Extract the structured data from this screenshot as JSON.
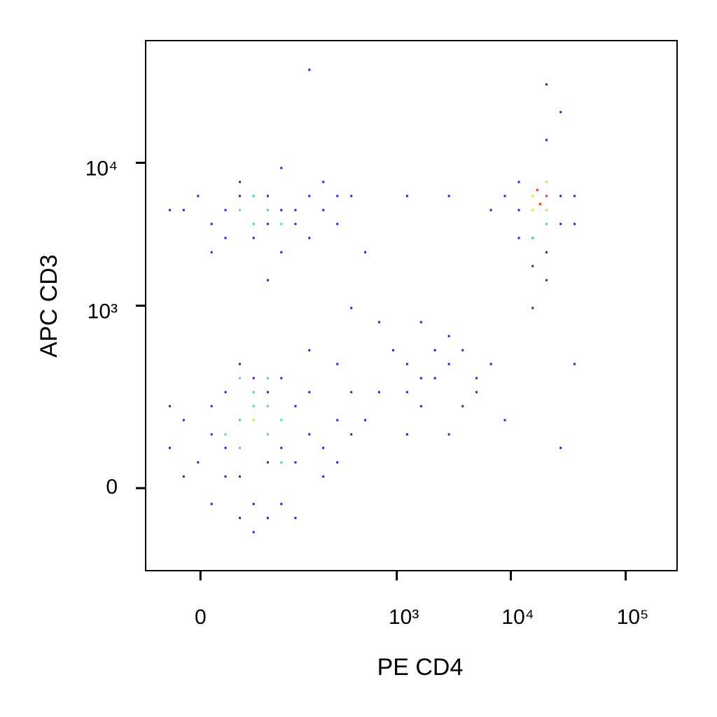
{
  "chart_data": {
    "type": "scatter",
    "x_label": "PE CD4",
    "y_label": "APC CD3",
    "xscale": "symlog",
    "yscale": "symlog",
    "xlim": [
      -40,
      280000
    ],
    "ylim": [
      -160,
      68800
    ],
    "xticks": [
      0,
      {
        "value": 1000,
        "label": "10³"
      },
      {
        "value": 10000,
        "label": "10⁴"
      },
      {
        "value": 100000,
        "label": "10⁵"
      }
    ],
    "yticks": [
      0,
      {
        "value": 1000,
        "label": "10³"
      },
      {
        "value": 10000,
        "label": "10⁴"
      }
    ],
    "series": [
      {
        "color": "#1a1aff",
        "x": [
          -8,
          -17,
          5,
          13,
          24,
          38,
          57,
          81,
          114,
          157,
          214,
          290,
          -1,
          5,
          13,
          24,
          38,
          57,
          81,
          114,
          157,
          214,
          290,
          390,
          5,
          24,
          81,
          38,
          13,
          57,
          114,
          157,
          -8,
          -17,
          24,
          390,
          290,
          -8,
          -1,
          5,
          13,
          24,
          38,
          57,
          81,
          114,
          157,
          214,
          290,
          390,
          5,
          24,
          57,
          81,
          114,
          157,
          214,
          38,
          13,
          81,
          290,
          -17,
          928,
          1234,
          1640,
          2170,
          2880,
          3800,
          5020,
          6700,
          1640,
          2170,
          1234,
          2880,
          3800,
          696,
          522,
          8870,
          5020,
          1640,
          2880,
          1234,
          11760,
          15500,
          20460,
          27140,
          11760,
          15500,
          20460,
          27140,
          35900,
          11760,
          20460,
          20460,
          15500,
          27140,
          8870,
          35900,
          157,
          1234,
          2880,
          390,
          696,
          57,
          6700,
          522,
          35900,
          27140
        ],
        "y": [
          115,
          53,
          -17,
          212,
          -36,
          279,
          30,
          -17,
          158,
          80,
          12,
          115,
          30,
          158,
          53,
          363,
          -60,
          212,
          53,
          -36,
          212,
          53,
          363,
          80,
          80,
          115,
          279,
          -17,
          12,
          -36,
          30,
          466,
          12,
          158,
          12,
          212,
          30,
          4720,
          5900,
          3780,
          4720,
          7380,
          3020,
          5900,
          4720,
          3780,
          5900,
          4720,
          3780,
          5900,
          2400,
          5900,
          3780,
          9210,
          4720,
          3020,
          7380,
          5900,
          3020,
          2400,
          5900,
          4720,
          466,
          212,
          759,
          279,
          363,
          158,
          279,
          363,
          158,
          466,
          363,
          80,
          466,
          212,
          115,
          115,
          212,
          279,
          597,
          80,
          4720,
          3020,
          2400,
          5900,
          7380,
          1918,
          1525,
          3780,
          5900,
          3020,
          34500,
          14340,
          962,
          22300,
          5900,
          3780,
          43400,
          5900,
          5900,
          962,
          759,
          1525,
          4720,
          2400,
          363,
          53
        ]
      },
      {
        "color": "#2de3a5",
        "x": [
          24,
          38,
          57,
          38,
          24,
          57,
          81,
          13,
          38,
          57,
          81,
          24,
          24,
          38,
          57,
          81,
          38,
          15500,
          20460
        ],
        "y": [
          115,
          158,
          80,
          212,
          53,
          158,
          115,
          80,
          115,
          279,
          30,
          279,
          4720,
          5900,
          4720,
          3780,
          3780,
          3020,
          3780
        ]
      },
      {
        "color": "#f0e000",
        "x": [
          15500,
          20460,
          15500,
          20460,
          38
        ],
        "y": [
          5900,
          4720,
          4720,
          7380,
          115
        ]
      },
      {
        "color": "#ff3000",
        "x": [
          20460,
          17000,
          18000
        ],
        "y": [
          5900,
          6500,
          5200
        ]
      }
    ]
  }
}
